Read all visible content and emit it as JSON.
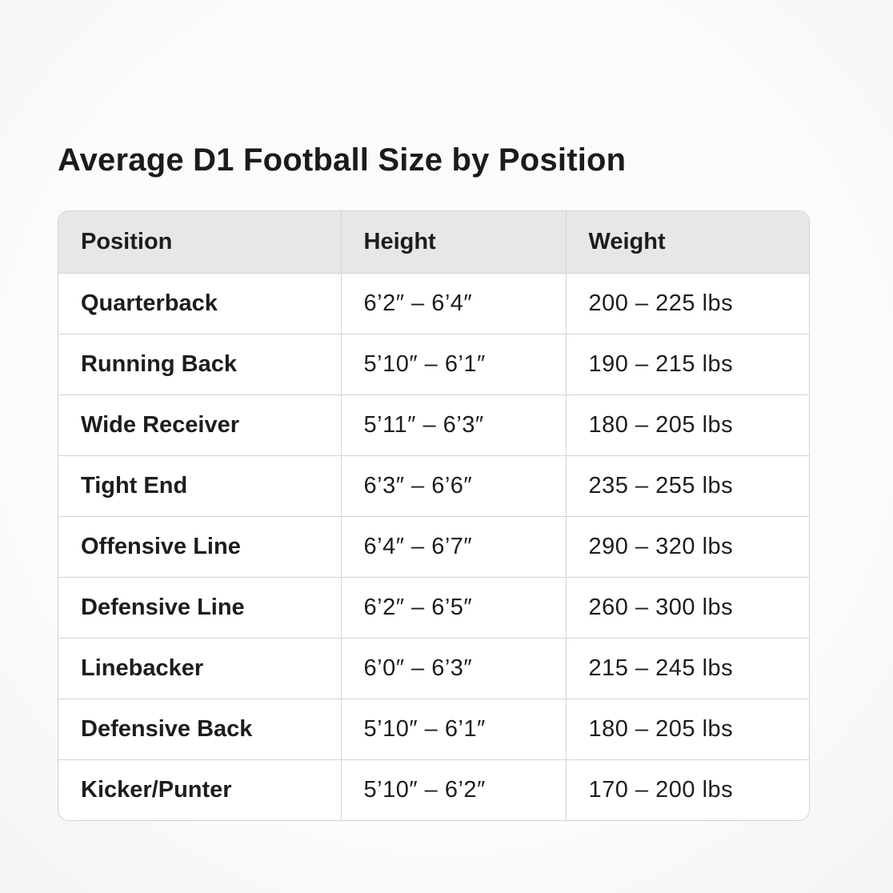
{
  "page": {
    "title": "Average D1 Football Size by Position"
  },
  "chart_data": {
    "type": "table",
    "title": "Average D1 Football Size by Position",
    "columns": [
      "Position",
      "Height",
      "Weight"
    ],
    "rows": [
      [
        "Quarterback",
        "6’2″ – 6’4″",
        "200 – 225 lbs"
      ],
      [
        "Running Back",
        "5’10″ – 6’1″",
        "190 – 215 lbs"
      ],
      [
        "Wide Receiver",
        "5’11″ – 6’3″",
        "180 – 205 lbs"
      ],
      [
        "Tight End",
        "6’3″ – 6’6″",
        "235 – 255 lbs"
      ],
      [
        "Offensive Line",
        "6’4″ – 6’7″",
        "290 – 320 lbs"
      ],
      [
        "Defensive Line",
        "6’2″ – 6’5″",
        "260 – 300 lbs"
      ],
      [
        "Linebacker",
        "6’0″ – 6’3″",
        "215 – 245 lbs"
      ],
      [
        "Defensive Back",
        "5’10″ – 6’1″",
        "180 – 205 lbs"
      ],
      [
        "Kicker/Punter",
        "5’10″ – 6’2″",
        "170 – 200 lbs"
      ]
    ],
    "colors": {
      "header_background": "#e7e7e9",
      "border": "#d3d3d6",
      "text": "#1d1d1f",
      "page_background": "#f7f7f8"
    }
  }
}
